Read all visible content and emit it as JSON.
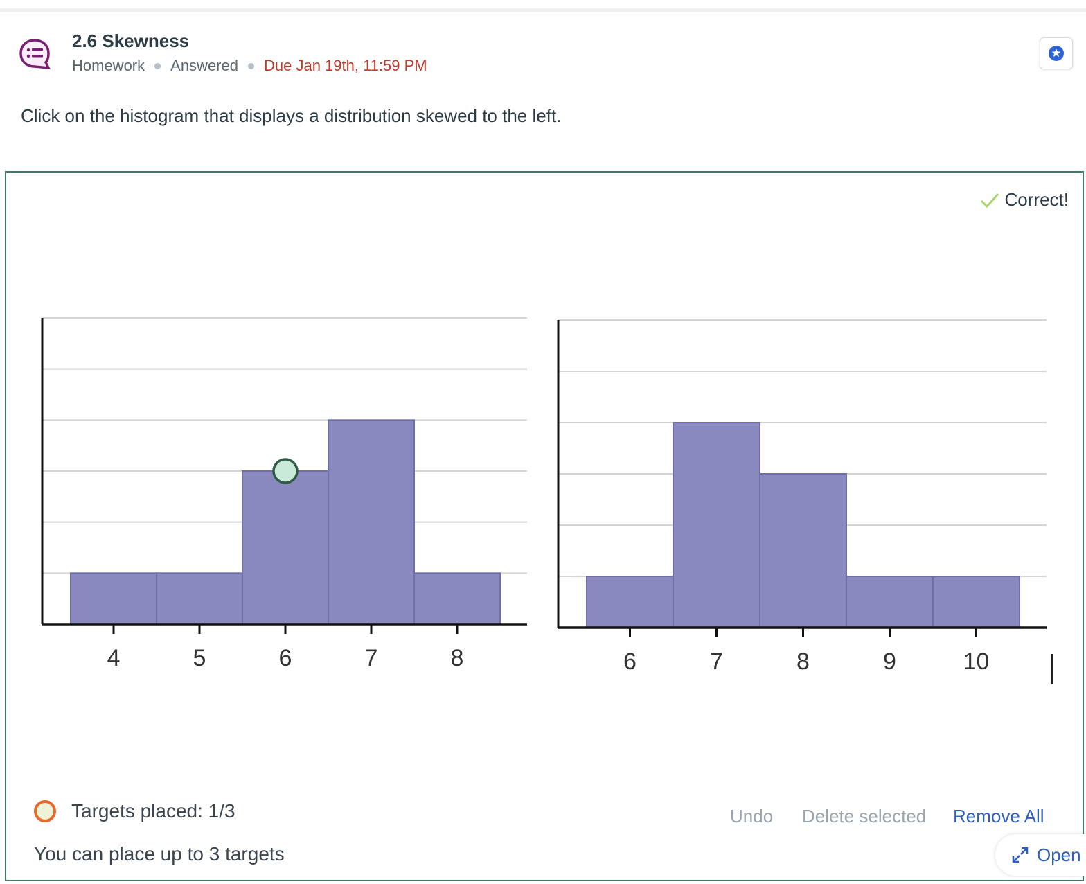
{
  "assignment": {
    "title": "2.6 Skewness",
    "type": "Homework",
    "status": "Answered",
    "due": "Due Jan 19th, 11:59 PM"
  },
  "question": {
    "prompt": "Click on the histogram that displays a distribution skewed to the left."
  },
  "result": {
    "label": "Correct!"
  },
  "targets": {
    "status": "Targets placed: 1/3",
    "hint": "You can place up to 3 targets",
    "placed": [
      {
        "chart": 0,
        "x": 6.0,
        "y": 3.0
      }
    ]
  },
  "actions": {
    "undo": "Undo",
    "delete_selected": "Delete selected",
    "remove_all": "Remove All",
    "open": "Open"
  },
  "icons": {
    "homework": "discussion-list-icon",
    "star": "star-icon",
    "check": "check-icon",
    "expand": "expand-icon"
  },
  "colors": {
    "bar": "#8a89bf",
    "bar_stroke": "#6f6eaa",
    "correct_check": "#a6d66b",
    "due": "#c0392b",
    "link": "#2e5fbf",
    "panel_border": "#3c7a6a",
    "target_border": "#e8692a"
  },
  "chart_data": [
    {
      "type": "bar",
      "categories": [
        "4",
        "5",
        "6",
        "7",
        "8"
      ],
      "values": [
        1,
        1,
        3,
        4,
        1
      ],
      "ylim": [
        0,
        6
      ],
      "grid": true
    },
    {
      "type": "bar",
      "categories": [
        "6",
        "7",
        "8",
        "9",
        "10"
      ],
      "values": [
        1,
        4,
        3,
        1,
        1
      ],
      "ylim": [
        0,
        6
      ],
      "grid": true
    }
  ]
}
